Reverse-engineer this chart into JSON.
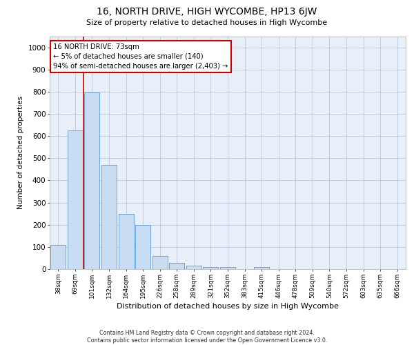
{
  "title": "16, NORTH DRIVE, HIGH WYCOMBE, HP13 6JW",
  "subtitle": "Size of property relative to detached houses in High Wycombe",
  "xlabel": "Distribution of detached houses by size in High Wycombe",
  "ylabel": "Number of detached properties",
  "footer_line1": "Contains HM Land Registry data © Crown copyright and database right 2024.",
  "footer_line2": "Contains public sector information licensed under the Open Government Licence v3.0.",
  "categories": [
    "38sqm",
    "69sqm",
    "101sqm",
    "132sqm",
    "164sqm",
    "195sqm",
    "226sqm",
    "258sqm",
    "289sqm",
    "321sqm",
    "352sqm",
    "383sqm",
    "415sqm",
    "446sqm",
    "478sqm",
    "509sqm",
    "540sqm",
    "572sqm",
    "603sqm",
    "635sqm",
    "666sqm"
  ],
  "values": [
    110,
    625,
    795,
    470,
    250,
    200,
    60,
    28,
    17,
    10,
    10,
    0,
    10,
    0,
    0,
    0,
    0,
    0,
    0,
    0,
    0
  ],
  "bar_color": "#c9ddf2",
  "bar_edge_color": "#5b9bd5",
  "grid_color": "#b8c8de",
  "bg_color": "#e8eff8",
  "annotation_line1": "16 NORTH DRIVE: 73sqm",
  "annotation_line2": "← 5% of detached houses are smaller (140)",
  "annotation_line3": "94% of semi-detached houses are larger (2,403) →",
  "annotation_box_color": "#ffffff",
  "annotation_box_edge_color": "#cc0000",
  "vline_color": "#cc0000",
  "vline_x": 1.5,
  "ylim": [
    0,
    1050
  ],
  "yticks": [
    0,
    100,
    200,
    300,
    400,
    500,
    600,
    700,
    800,
    900,
    1000
  ]
}
